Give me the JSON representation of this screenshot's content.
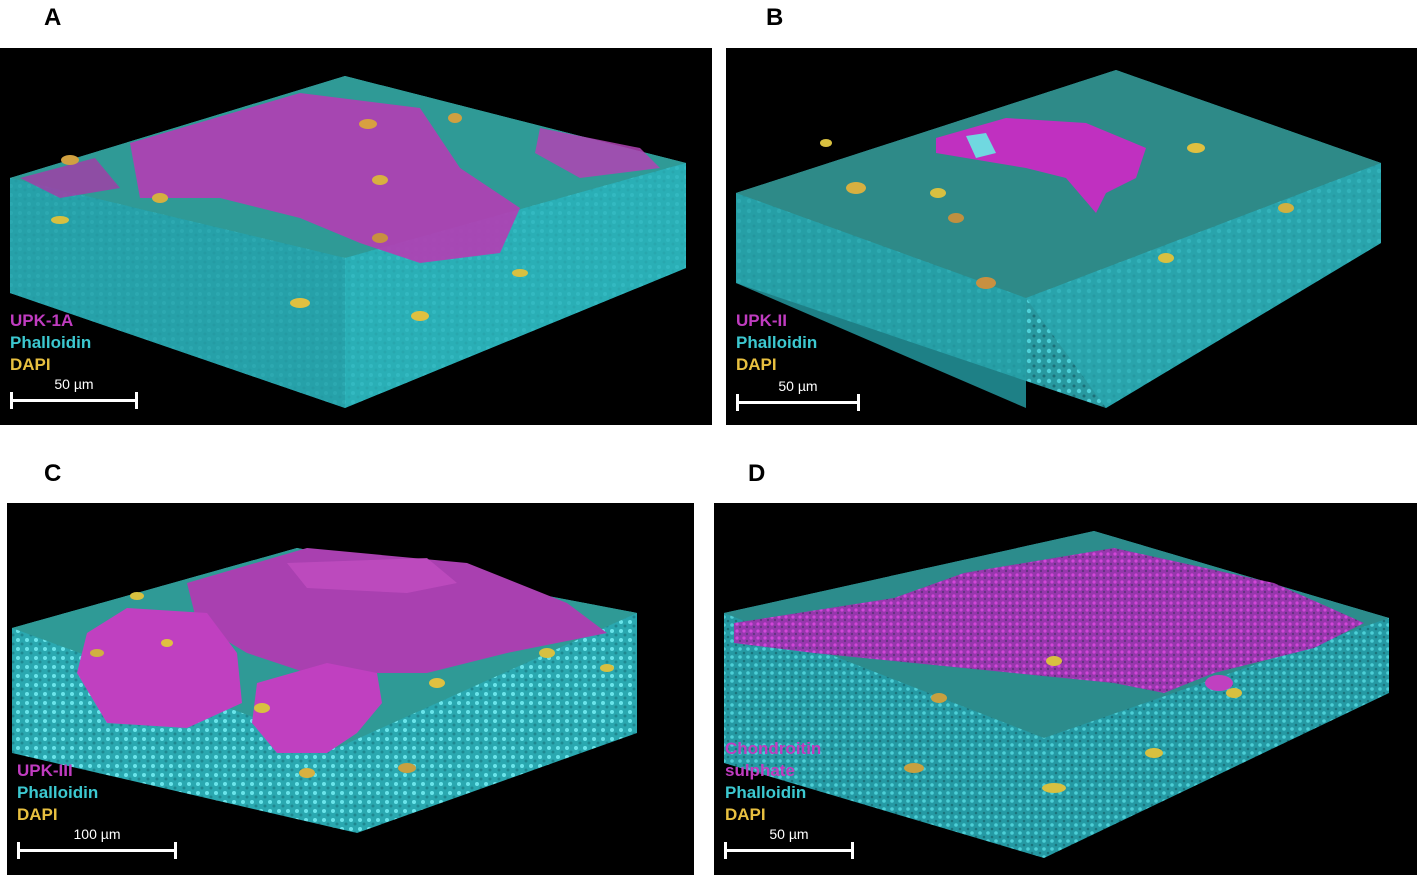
{
  "colors": {
    "magenta": "#c03cc0",
    "cyan": "#3cc8d0",
    "yellow": "#e8c040",
    "background": "#000000"
  },
  "panels": [
    {
      "letter": "A",
      "stains": [
        {
          "text": "UPK-1A",
          "color": "#c03cc0"
        },
        {
          "text": "Phalloidin",
          "color": "#3cc8d0"
        },
        {
          "text": "DAPI",
          "color": "#e8c040"
        }
      ],
      "scale_label": "50 µm"
    },
    {
      "letter": "B",
      "stains": [
        {
          "text": "UPK-II",
          "color": "#c03cc0"
        },
        {
          "text": "Phalloidin",
          "color": "#3cc8d0"
        },
        {
          "text": "DAPI",
          "color": "#e8c040"
        }
      ],
      "scale_label": "50 µm"
    },
    {
      "letter": "C",
      "stains": [
        {
          "text": "UPK-III",
          "color": "#c03cc0"
        },
        {
          "text": "Phalloidin",
          "color": "#3cc8d0"
        },
        {
          "text": "DAPI",
          "color": "#e8c040"
        }
      ],
      "scale_label": "100 µm"
    },
    {
      "letter": "D",
      "stains": [
        {
          "text": "Chondroitin",
          "color": "#c03cc0"
        },
        {
          "text": "sulphate",
          "color": "#c03cc0"
        },
        {
          "text": "Phalloidin",
          "color": "#3cc8d0"
        },
        {
          "text": "DAPI",
          "color": "#e8c040"
        }
      ],
      "scale_label": "50 µm"
    }
  ]
}
